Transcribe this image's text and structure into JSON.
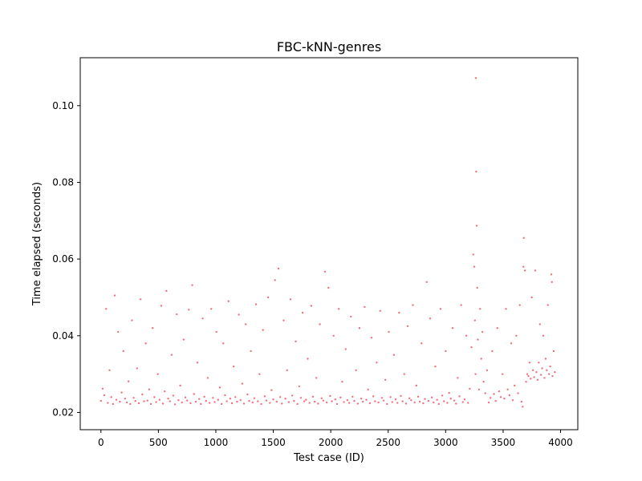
{
  "chart_data": {
    "type": "scatter",
    "title": "FBC-kNN-genres",
    "xlabel": "Test case (ID)",
    "ylabel": "Time elapsed (seconds)",
    "xlim": [
      -180,
      4150
    ],
    "ylim": [
      0.0155,
      0.1125
    ],
    "xticks": [
      0,
      500,
      1000,
      1500,
      2000,
      2500,
      3000,
      3500,
      4000
    ],
    "yticks": [
      0.02,
      0.04,
      0.06,
      0.08,
      0.1
    ],
    "ytick_labels": [
      "0.02",
      "0.04",
      "0.06",
      "0.08",
      "0.10"
    ],
    "marker_color": "#f0727e",
    "grid": false,
    "legend": false,
    "series": [
      {
        "points": [
          [
            0,
            0.023
          ],
          [
            15,
            0.0262
          ],
          [
            30,
            0.0245
          ],
          [
            45,
            0.047
          ],
          [
            60,
            0.0225
          ],
          [
            75,
            0.031
          ],
          [
            90,
            0.024
          ],
          [
            105,
            0.0222
          ],
          [
            120,
            0.0505
          ],
          [
            135,
            0.0233
          ],
          [
            150,
            0.041
          ],
          [
            165,
            0.0228
          ],
          [
            180,
            0.0252
          ],
          [
            195,
            0.036
          ],
          [
            210,
            0.0236
          ],
          [
            225,
            0.0226
          ],
          [
            240,
            0.0281
          ],
          [
            255,
            0.0222
          ],
          [
            270,
            0.044
          ],
          [
            285,
            0.0238
          ],
          [
            300,
            0.023
          ],
          [
            315,
            0.0315
          ],
          [
            330,
            0.0224
          ],
          [
            345,
            0.0495
          ],
          [
            360,
            0.0247
          ],
          [
            375,
            0.0229
          ],
          [
            390,
            0.038
          ],
          [
            405,
            0.0231
          ],
          [
            420,
            0.026
          ],
          [
            435,
            0.0222
          ],
          [
            450,
            0.042
          ],
          [
            465,
            0.024
          ],
          [
            480,
            0.0227
          ],
          [
            495,
            0.03
          ],
          [
            510,
            0.0233
          ],
          [
            525,
            0.0478
          ],
          [
            540,
            0.0223
          ],
          [
            555,
            0.0255
          ],
          [
            570,
            0.0517
          ],
          [
            585,
            0.0236
          ],
          [
            600,
            0.0229
          ],
          [
            615,
            0.035
          ],
          [
            630,
            0.0244
          ],
          [
            645,
            0.0221
          ],
          [
            660,
            0.0456
          ],
          [
            675,
            0.0232
          ],
          [
            690,
            0.027
          ],
          [
            705,
            0.0226
          ],
          [
            720,
            0.039
          ],
          [
            735,
            0.0239
          ],
          [
            750,
            0.0231
          ],
          [
            765,
            0.0468
          ],
          [
            780,
            0.0224
          ],
          [
            795,
            0.0532
          ],
          [
            810,
            0.0248
          ],
          [
            825,
            0.0228
          ],
          [
            840,
            0.033
          ],
          [
            855,
            0.0235
          ],
          [
            870,
            0.0222
          ],
          [
            885,
            0.0445
          ],
          [
            900,
            0.0241
          ],
          [
            915,
            0.023
          ],
          [
            930,
            0.029
          ],
          [
            945,
            0.0225
          ],
          [
            960,
            0.047
          ],
          [
            975,
            0.0238
          ],
          [
            990,
            0.0227
          ],
          [
            1005,
            0.041
          ],
          [
            1020,
            0.0233
          ],
          [
            1035,
            0.0265
          ],
          [
            1050,
            0.0222
          ],
          [
            1065,
            0.038
          ],
          [
            1080,
            0.0245
          ],
          [
            1095,
            0.0229
          ],
          [
            1110,
            0.049
          ],
          [
            1125,
            0.0236
          ],
          [
            1140,
            0.0224
          ],
          [
            1155,
            0.032
          ],
          [
            1170,
            0.024
          ],
          [
            1185,
            0.0228
          ],
          [
            1200,
            0.0455
          ],
          [
            1215,
            0.0232
          ],
          [
            1230,
            0.0275
          ],
          [
            1245,
            0.0223
          ],
          [
            1260,
            0.043
          ],
          [
            1275,
            0.0247
          ],
          [
            1290,
            0.023
          ],
          [
            1305,
            0.036
          ],
          [
            1320,
            0.0226
          ],
          [
            1335,
            0.0237
          ],
          [
            1350,
            0.0482
          ],
          [
            1365,
            0.0229
          ],
          [
            1380,
            0.03
          ],
          [
            1395,
            0.0222
          ],
          [
            1410,
            0.0415
          ],
          [
            1425,
            0.0242
          ],
          [
            1440,
            0.0231
          ],
          [
            1455,
            0.05
          ],
          [
            1470,
            0.0225
          ],
          [
            1485,
            0.0258
          ],
          [
            1500,
            0.0234
          ],
          [
            1515,
            0.0545
          ],
          [
            1530,
            0.0228
          ],
          [
            1545,
            0.0575
          ],
          [
            1560,
            0.024
          ],
          [
            1575,
            0.0223
          ],
          [
            1590,
            0.044
          ],
          [
            1605,
            0.0236
          ],
          [
            1620,
            0.031
          ],
          [
            1635,
            0.0227
          ],
          [
            1650,
            0.0495
          ],
          [
            1665,
            0.0244
          ],
          [
            1680,
            0.023
          ],
          [
            1695,
            0.0385
          ],
          [
            1710,
            0.0222
          ],
          [
            1725,
            0.0268
          ],
          [
            1740,
            0.0238
          ],
          [
            1755,
            0.046
          ],
          [
            1770,
            0.0229
          ],
          [
            1785,
            0.0233
          ],
          [
            1800,
            0.034
          ],
          [
            1815,
            0.0225
          ],
          [
            1830,
            0.0478
          ],
          [
            1845,
            0.0241
          ],
          [
            1860,
            0.0228
          ],
          [
            1875,
            0.029
          ],
          [
            1890,
            0.0223
          ],
          [
            1905,
            0.043
          ],
          [
            1920,
            0.0237
          ],
          [
            1935,
            0.0231
          ],
          [
            1950,
            0.0567
          ],
          [
            1965,
            0.0226
          ],
          [
            1980,
            0.0525
          ],
          [
            1995,
            0.0243
          ],
          [
            2010,
            0.0229
          ],
          [
            2025,
            0.04
          ],
          [
            2040,
            0.0234
          ],
          [
            2055,
            0.0222
          ],
          [
            2070,
            0.047
          ],
          [
            2085,
            0.0239
          ],
          [
            2100,
            0.028
          ],
          [
            2115,
            0.0227
          ],
          [
            2130,
            0.0365
          ],
          [
            2145,
            0.0232
          ],
          [
            2160,
            0.0225
          ],
          [
            2175,
            0.045
          ],
          [
            2190,
            0.0241
          ],
          [
            2205,
            0.023
          ],
          [
            2220,
            0.031
          ],
          [
            2235,
            0.0223
          ],
          [
            2250,
            0.042
          ],
          [
            2265,
            0.0236
          ],
          [
            2280,
            0.0228
          ],
          [
            2295,
            0.0475
          ],
          [
            2310,
            0.0233
          ],
          [
            2325,
            0.026
          ],
          [
            2340,
            0.0224
          ],
          [
            2355,
            0.0395
          ],
          [
            2370,
            0.0242
          ],
          [
            2385,
            0.0229
          ],
          [
            2400,
            0.033
          ],
          [
            2415,
            0.0226
          ],
          [
            2430,
            0.0465
          ],
          [
            2445,
            0.0238
          ],
          [
            2460,
            0.0231
          ],
          [
            2475,
            0.0285
          ],
          [
            2490,
            0.0222
          ],
          [
            2505,
            0.041
          ],
          [
            2520,
            0.024
          ],
          [
            2535,
            0.0227
          ],
          [
            2550,
            0.035
          ],
          [
            2565,
            0.0234
          ],
          [
            2580,
            0.0225
          ],
          [
            2595,
            0.046
          ],
          [
            2610,
            0.0243
          ],
          [
            2625,
            0.0229
          ],
          [
            2640,
            0.03
          ],
          [
            2655,
            0.0223
          ],
          [
            2670,
            0.0425
          ],
          [
            2685,
            0.0237
          ],
          [
            2700,
            0.0232
          ],
          [
            2715,
            0.048
          ],
          [
            2730,
            0.0226
          ],
          [
            2745,
            0.027
          ],
          [
            2760,
            0.0241
          ],
          [
            2775,
            0.0228
          ],
          [
            2790,
            0.038
          ],
          [
            2805,
            0.0224
          ],
          [
            2820,
            0.0235
          ],
          [
            2835,
            0.054
          ],
          [
            2850,
            0.023
          ],
          [
            2865,
            0.0445
          ],
          [
            2880,
            0.0239
          ],
          [
            2895,
            0.0226
          ],
          [
            2910,
            0.032
          ],
          [
            2925,
            0.0233
          ],
          [
            2940,
            0.0222
          ],
          [
            2955,
            0.047
          ],
          [
            2970,
            0.0244
          ],
          [
            2985,
            0.0229
          ],
          [
            3000,
            0.036
          ],
          [
            3015,
            0.0225
          ],
          [
            3030,
            0.0251
          ],
          [
            3045,
            0.0236
          ],
          [
            3060,
            0.042
          ],
          [
            3075,
            0.0231
          ],
          [
            3090,
            0.0223
          ],
          [
            3105,
            0.029
          ],
          [
            3120,
            0.0242
          ],
          [
            3135,
            0.048
          ],
          [
            3150,
            0.0227
          ],
          [
            3165,
            0.0234
          ],
          [
            3180,
            0.04
          ],
          [
            3195,
            0.0225
          ],
          [
            3210,
            0.0262
          ],
          [
            3225,
            0.037
          ],
          [
            3240,
            0.0612
          ],
          [
            3250,
            0.058
          ],
          [
            3255,
            0.044
          ],
          [
            3260,
            0.03
          ],
          [
            3262,
            0.1072
          ],
          [
            3266,
            0.0828
          ],
          [
            3270,
            0.0687
          ],
          [
            3275,
            0.0525
          ],
          [
            3280,
            0.039
          ],
          [
            3290,
            0.026
          ],
          [
            3300,
            0.047
          ],
          [
            3310,
            0.034
          ],
          [
            3320,
            0.041
          ],
          [
            3330,
            0.028
          ],
          [
            3345,
            0.025
          ],
          [
            3360,
            0.031
          ],
          [
            3375,
            0.0226
          ],
          [
            3390,
            0.0238
          ],
          [
            3405,
            0.036
          ],
          [
            3420,
            0.0248
          ],
          [
            3435,
            0.023
          ],
          [
            3450,
            0.042
          ],
          [
            3465,
            0.0255
          ],
          [
            3480,
            0.024
          ],
          [
            3495,
            0.03
          ],
          [
            3510,
            0.0236
          ],
          [
            3525,
            0.047
          ],
          [
            3540,
            0.026
          ],
          [
            3555,
            0.0245
          ],
          [
            3570,
            0.038
          ],
          [
            3585,
            0.0232
          ],
          [
            3600,
            0.027
          ],
          [
            3615,
            0.04
          ],
          [
            3630,
            0.025
          ],
          [
            3645,
            0.048
          ],
          [
            3660,
            0.0228
          ],
          [
            3670,
            0.0215
          ],
          [
            3677,
            0.058
          ],
          [
            3680,
            0.0655
          ],
          [
            3690,
            0.057
          ],
          [
            3700,
            0.028
          ],
          [
            3710,
            0.03
          ],
          [
            3720,
            0.0295
          ],
          [
            3730,
            0.033
          ],
          [
            3740,
            0.0288
          ],
          [
            3750,
            0.05
          ],
          [
            3760,
            0.031
          ],
          [
            3770,
            0.0292
          ],
          [
            3780,
            0.057
          ],
          [
            3790,
            0.0305
          ],
          [
            3800,
            0.0285
          ],
          [
            3810,
            0.033
          ],
          [
            3820,
            0.043
          ],
          [
            3830,
            0.0298
          ],
          [
            3840,
            0.0315
          ],
          [
            3850,
            0.04
          ],
          [
            3860,
            0.029
          ],
          [
            3870,
            0.034
          ],
          [
            3880,
            0.031
          ],
          [
            3890,
            0.048
          ],
          [
            3900,
            0.03
          ],
          [
            3910,
            0.032
          ],
          [
            3920,
            0.056
          ],
          [
            3925,
            0.054
          ],
          [
            3930,
            0.0295
          ],
          [
            3940,
            0.036
          ],
          [
            3950,
            0.0305
          ]
        ]
      }
    ]
  }
}
